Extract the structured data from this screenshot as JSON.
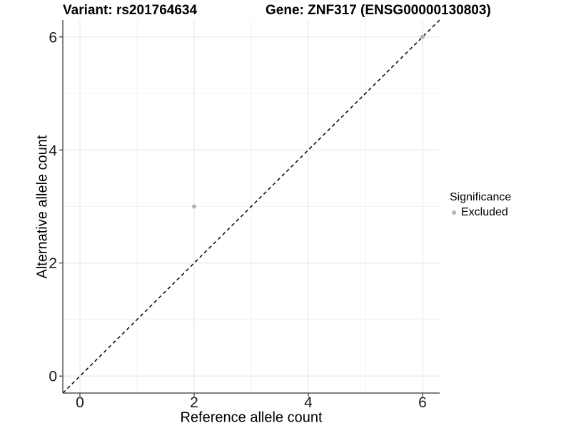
{
  "title": {
    "variant": "Variant: rs201764634",
    "gene": "Gene: ZNF317 (ENSG00000130803)"
  },
  "axes": {
    "x_label": "Reference allele count",
    "y_label": "Alternative allele count"
  },
  "legend": {
    "title": "Significance",
    "items": [
      {
        "label": "Excluded",
        "color": "#b5b5b5"
      }
    ]
  },
  "chart_data": {
    "type": "scatter",
    "title": "Variant: rs201764634 | Gene: ZNF317 (ENSG00000130803)",
    "xlabel": "Reference allele count",
    "ylabel": "Alternative allele count",
    "xlim": [
      -0.3,
      6.3
    ],
    "ylim": [
      -0.3,
      6.3
    ],
    "x_major_ticks": [
      0,
      2,
      4,
      6
    ],
    "y_major_ticks": [
      0,
      2,
      4,
      6
    ],
    "x_minor_ticks": [
      1,
      3,
      5
    ],
    "y_minor_ticks": [
      1,
      3,
      5
    ],
    "grid": {
      "major_color": "#e8e8e8",
      "minor_color": "#f2f2f2",
      "background": "#ffffff"
    },
    "axis_line_color": "#333333",
    "legend_position": "right",
    "series": [
      {
        "name": "Excluded",
        "color": "#b5b5b5",
        "points": [
          {
            "x": 2,
            "y": 3
          },
          {
            "x": 6,
            "y": 6
          }
        ]
      }
    ],
    "reference_line": {
      "kind": "identity y=x",
      "style": "dashed",
      "color": "#000000",
      "from": [
        -0.3,
        -0.3
      ],
      "to": [
        6.3,
        6.3
      ]
    }
  }
}
